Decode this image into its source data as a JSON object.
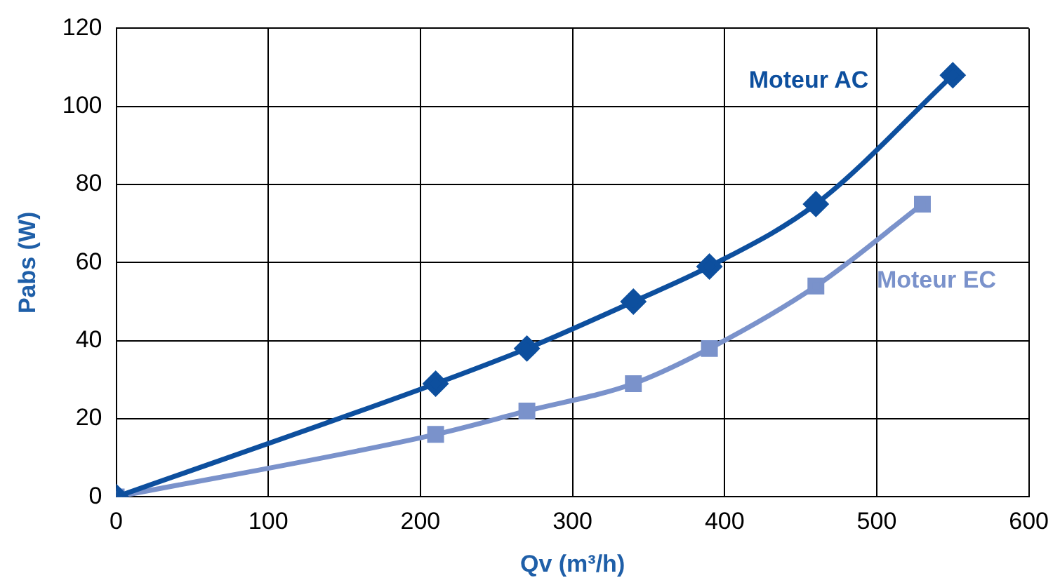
{
  "chart_data": {
    "type": "line",
    "xlabel": "Qv (m³/h)",
    "ylabel": "Pabs (W)",
    "xlim": [
      0,
      600
    ],
    "xticks": [
      0,
      100,
      200,
      300,
      400,
      500,
      600
    ],
    "ylim": [
      0,
      120
    ],
    "yticks": [
      0,
      20,
      40,
      60,
      80,
      100,
      120
    ],
    "grid": true,
    "legend": false,
    "series": [
      {
        "name": "Moteur AC",
        "color": "#0d4f9e",
        "marker": "diamond",
        "x": [
          0,
          210,
          270,
          340,
          390,
          460,
          550
        ],
        "values": [
          0,
          29,
          38,
          50,
          59,
          75,
          108
        ]
      },
      {
        "name": "Moteur EC",
        "color": "#7a92cb",
        "marker": "square",
        "x": [
          0,
          210,
          270,
          340,
          390,
          460,
          530
        ],
        "values": [
          0,
          16,
          22,
          29,
          38,
          54,
          75
        ]
      }
    ]
  }
}
